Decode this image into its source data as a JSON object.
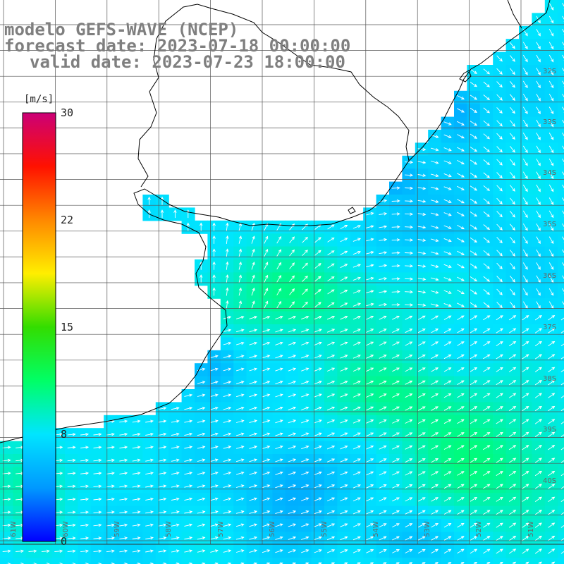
{
  "title": {
    "line1": "modelo GEFS-WAVE (NCEP)",
    "line2": "forecast date: 2023-07-18 00:00:00",
    "line3": "valid date: 2023-07-23 18:00:00"
  },
  "colorbar": {
    "unit": "[m/s]",
    "ticks": [
      "30",
      "22",
      "15",
      "8",
      "0"
    ],
    "tick_values": [
      30,
      22,
      15,
      8,
      0
    ],
    "colors": [
      "#0000ff",
      "#0099ff",
      "#00e5ff",
      "#00ff66",
      "#33dd00",
      "#ffee00",
      "#ff8800",
      "#ff1100",
      "#cc0077"
    ]
  },
  "lat_labels": [
    "32S",
    "33S",
    "34S",
    "35S",
    "36S",
    "37S",
    "38S",
    "39S",
    "40S"
  ],
  "lon_labels": [
    "61W",
    "60W",
    "59W",
    "58W",
    "57W",
    "56W",
    "55W",
    "54W",
    "53W",
    "52W",
    "51W"
  ],
  "colors": {
    "land": "#ffffff",
    "coast": "#000000",
    "grid": "#555555",
    "arrow": "#ffffff"
  }
}
